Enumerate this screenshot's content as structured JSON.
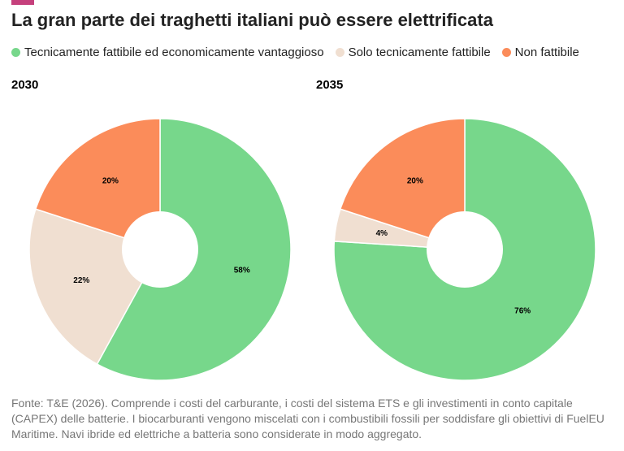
{
  "title": "La gran parte dei traghetti italiani può essere elettrificata",
  "legend": {
    "labels": [
      "Tecnicamente fattibile ed economicamente vantaggioso",
      "Solo tecnicamente fattibile",
      "Non fattibile"
    ],
    "colors": [
      "#77d78b",
      "#f0dfd1",
      "#fb8c5a"
    ]
  },
  "chart_data": [
    {
      "type": "pie",
      "title": "2030",
      "values": [
        58,
        22,
        20
      ],
      "value_labels": [
        "58%",
        "22%",
        "20%"
      ]
    },
    {
      "type": "pie",
      "title": "2035",
      "values": [
        76,
        4,
        20
      ],
      "value_labels": [
        "76%",
        "4%",
        "20%"
      ]
    }
  ],
  "source": "Fonte: T&E (2026). Comprende i costi del carburante, i costi del sistema ETS e gli investimenti in conto capitale (CAPEX) delle batterie. I biocarburanti vengono miscelati con i combustibili fossili per soddisfare gli obiettivi di FuelEU Maritime. Navi ibride ed elettriche a batteria sono considerate in modo aggregato."
}
